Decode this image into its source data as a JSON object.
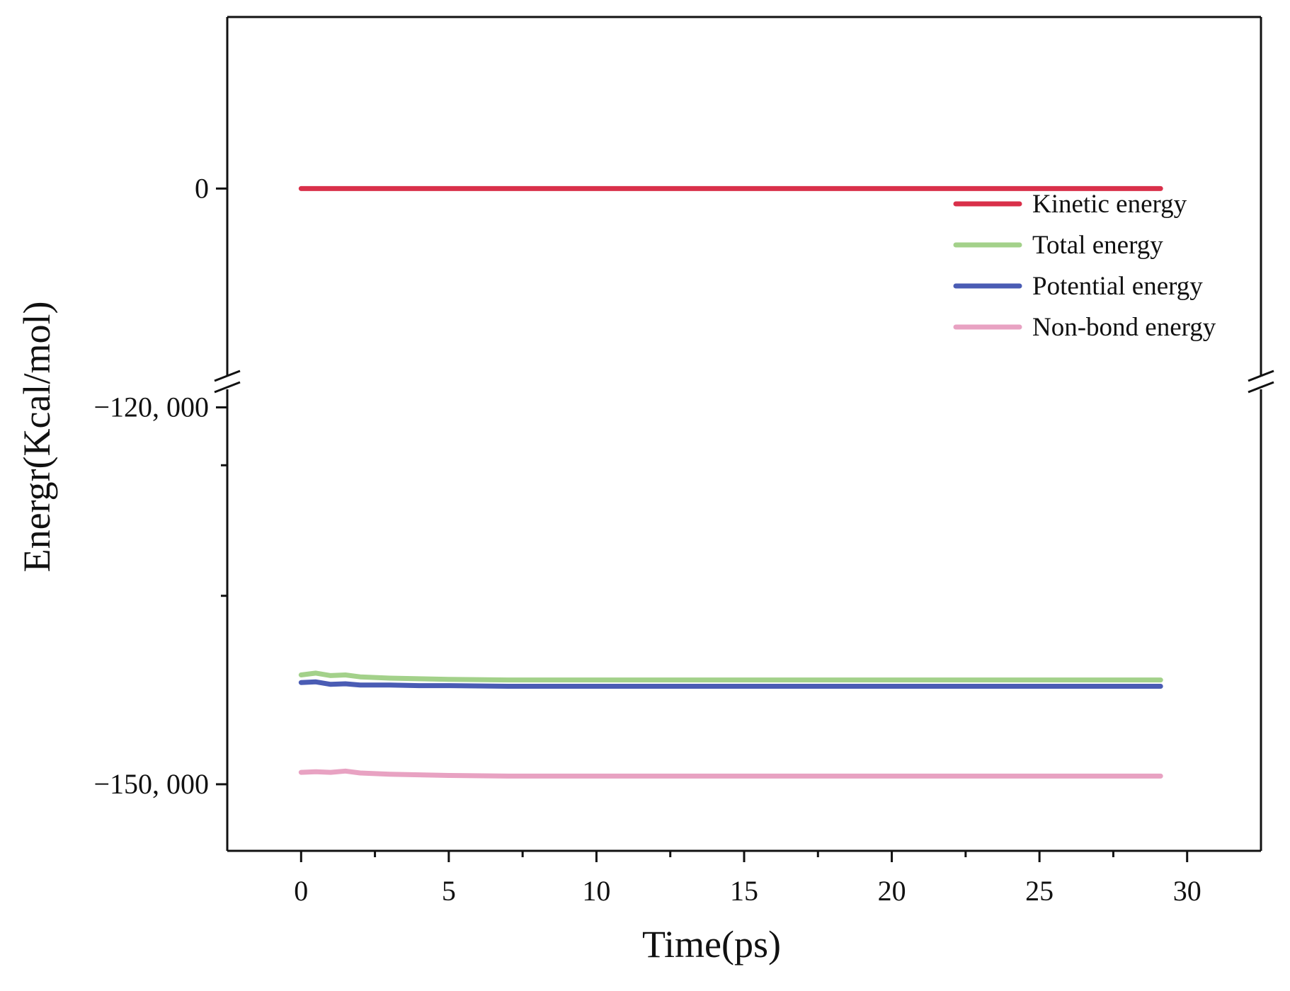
{
  "chart_data": {
    "type": "line",
    "xlabel": "Time(ps)",
    "ylabel": "Energr(Kcal/mol)",
    "xlim": [
      -2.5,
      32.5
    ],
    "x_ticks": [
      0,
      5,
      10,
      15,
      20,
      25,
      30
    ],
    "x_tick_labels": [
      "0",
      "5",
      "10",
      "15",
      "20",
      "25",
      "30"
    ],
    "y_axis_break": true,
    "y_segments": [
      {
        "ylim": [
          -7000,
          6200
        ],
        "ticks": [
          0
        ],
        "tick_labels": [
          "0"
        ],
        "minor_ticks": [
          -10000
        ]
      },
      {
        "ylim": [
          -155300,
          -118000
        ],
        "ticks": [
          -120000,
          -150000
        ],
        "tick_labels": [
          "−120, 000",
          "−150, 000"
        ],
        "minor_ticks": [
          -135000
        ]
      }
    ],
    "legend": {
      "position": "top-right",
      "entries": [
        "Kinetic energy",
        "Total energy",
        "Potential energy",
        "Non-bond energy"
      ]
    },
    "grid": false,
    "series": [
      {
        "name": "Kinetic energy",
        "color": "#d9304a",
        "segment": 0,
        "x": [
          0,
          5,
          10,
          15,
          20,
          25,
          29.1
        ],
        "y": [
          0,
          0,
          0,
          0,
          0,
          0,
          0
        ]
      },
      {
        "name": "Total energy",
        "color": "#a3d18a",
        "segment": 1,
        "x": [
          0,
          0.5,
          1,
          1.5,
          2,
          3,
          4,
          5,
          7,
          10,
          15,
          20,
          25,
          29.1
        ],
        "y": [
          -141300,
          -141150,
          -141350,
          -141300,
          -141450,
          -141550,
          -141600,
          -141650,
          -141700,
          -141700,
          -141700,
          -141700,
          -141700,
          -141700
        ]
      },
      {
        "name": "Potential energy",
        "color": "#4a5cb4",
        "segment": 1,
        "x": [
          0,
          0.5,
          1,
          1.5,
          2,
          3,
          4,
          5,
          7,
          10,
          15,
          20,
          25,
          29.1
        ],
        "y": [
          -141900,
          -141850,
          -142050,
          -142000,
          -142100,
          -142100,
          -142150,
          -142150,
          -142200,
          -142200,
          -142200,
          -142200,
          -142200,
          -142200
        ]
      },
      {
        "name": "Non-bond energy",
        "color": "#e8a2c2",
        "segment": 1,
        "x": [
          0,
          0.5,
          1,
          1.5,
          2,
          3,
          4,
          5,
          7,
          10,
          15,
          20,
          25,
          29.1
        ],
        "y": [
          -149050,
          -149000,
          -149050,
          -148950,
          -149100,
          -149200,
          -149250,
          -149300,
          -149350,
          -149350,
          -149350,
          -149350,
          -149350,
          -149350
        ]
      }
    ]
  }
}
